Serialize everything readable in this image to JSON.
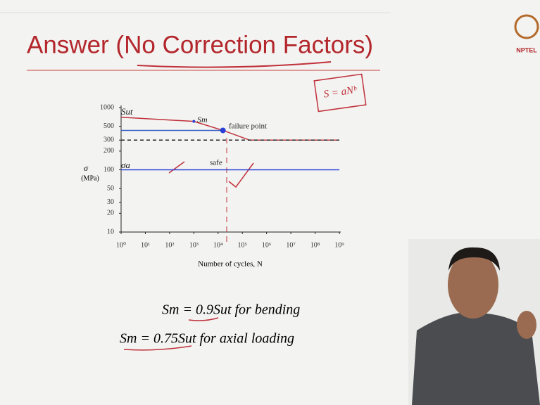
{
  "slide": {
    "title": "Answer (No Correction Factors)",
    "logo": "NPTEL",
    "formulas": [
      "Sm = 0.9Sut for bending",
      "Sm = 0.75Sut for axial loading"
    ],
    "handwritten_note": "S = aNᵇ"
  },
  "chart_data": {
    "type": "line",
    "xlabel": "Number of cycles, N",
    "ylabel": "σ",
    "ylabel_unit": "(MPa)",
    "log_x": true,
    "log_y": true,
    "xlim": [
      1,
      1000000000
    ],
    "ylim": [
      10,
      1000
    ],
    "xticks": [
      {
        "value": 1,
        "label": "10⁰"
      },
      {
        "value": 10,
        "label": "10¹"
      },
      {
        "value": 100,
        "label": "10²"
      },
      {
        "value": 1000,
        "label": "10³"
      },
      {
        "value": 10000,
        "label": "10⁴"
      },
      {
        "value": 100000,
        "label": "10⁵"
      },
      {
        "value": 1000000,
        "label": "10⁶"
      },
      {
        "value": 10000000,
        "label": "10⁷"
      },
      {
        "value": 100000000,
        "label": "10⁸"
      },
      {
        "value": 1000000000,
        "label": "10⁹"
      }
    ],
    "yticks": [
      10,
      20,
      30,
      50,
      100,
      200,
      300,
      500,
      1000
    ],
    "series": [
      {
        "color": "#c0303a",
        "style": "solid",
        "x": [
          1,
          1000,
          15849,
          199526,
          1000000000
        ],
        "values": [
          700,
          600,
          430,
          300,
          300
        ]
      },
      {
        "color": "#3a5fc8",
        "style": "solid",
        "x": [
          1,
          15849
        ],
        "values": [
          430,
          430
        ]
      },
      {
        "color": "#222222",
        "style": "dashed",
        "x": [
          1,
          1000000000
        ],
        "values": [
          300,
          300
        ]
      },
      {
        "color": "#2b3fd6",
        "style": "solid",
        "x": [
          1,
          1000000000
        ],
        "values": [
          100,
          100
        ]
      }
    ],
    "points": {
      "color": "#2b3fd6",
      "x": [
        1000,
        15849
      ],
      "values": [
        600,
        430
      ]
    },
    "annotations": [
      "Sut",
      "Sm",
      "failure point",
      "σa",
      "safe"
    ]
  }
}
